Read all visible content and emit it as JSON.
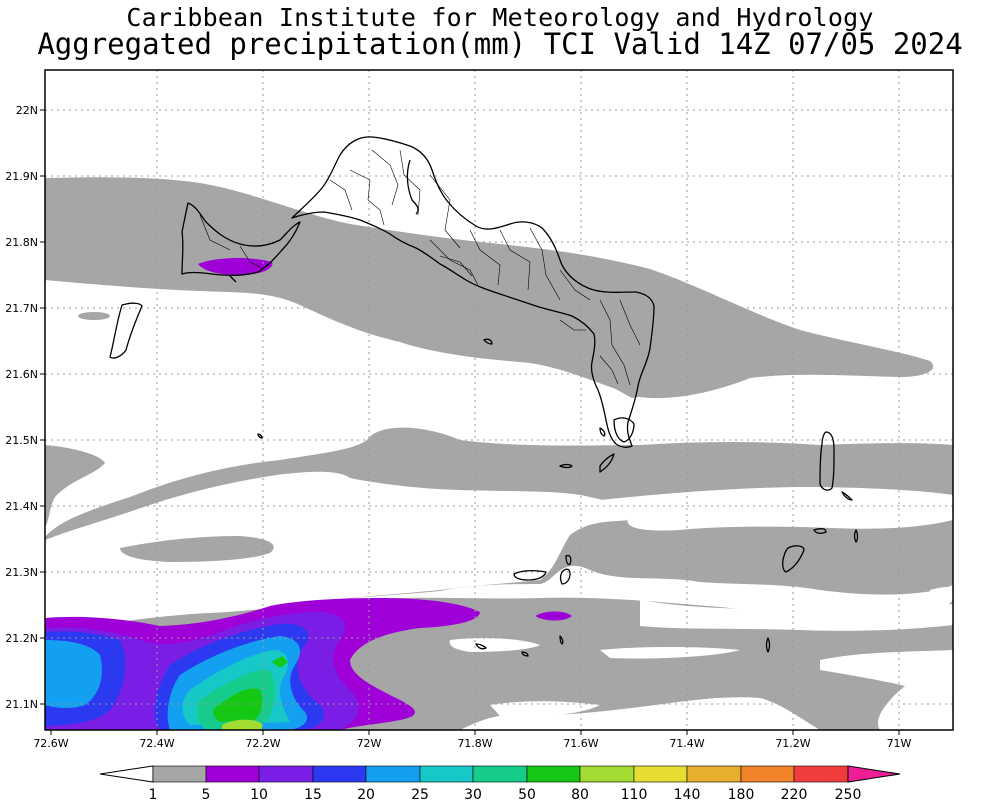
{
  "header": {
    "title_line1": "Caribbean Institute for Meteorology and Hydrology",
    "title_line2": "Aggregated precipitation(mm) TCI Valid 14Z 07/05 2024"
  },
  "axes": {
    "lat_labels": [
      "22N",
      "21.9N",
      "21.8N",
      "21.7N",
      "21.6N",
      "21.5N",
      "21.4N",
      "21.3N",
      "21.2N",
      "21.1N"
    ],
    "lon_labels": [
      "72.6W",
      "72.4W",
      "72.2W",
      "72W",
      "71.8W",
      "71.6W",
      "71.4W",
      "71.2W",
      "71W"
    ],
    "lat_range": [
      21.06,
      22.1
    ],
    "lon_range": [
      -72.6,
      -70.92
    ],
    "gridlines": "dotted"
  },
  "colorbar": {
    "labels": [
      "1",
      "5",
      "10",
      "15",
      "20",
      "25",
      "30",
      "50",
      "80",
      "110",
      "140",
      "180",
      "220",
      "250"
    ],
    "colors": [
      "#a6a6a6",
      "#9f00d8",
      "#7a1ee6",
      "#2b3af0",
      "#14a0f0",
      "#16c8c8",
      "#16cc8a",
      "#14c814",
      "#a2dc32",
      "#e6dc32",
      "#e6af2d",
      "#f08228",
      "#f03c3c",
      "#f01e96"
    ],
    "below_color": "#ffffff",
    "above_color": "#f01e96"
  },
  "legend_colors": {
    "land_outline": "#000000",
    "land_fill": "#ffffff",
    "ocean": "#ffffff"
  }
}
